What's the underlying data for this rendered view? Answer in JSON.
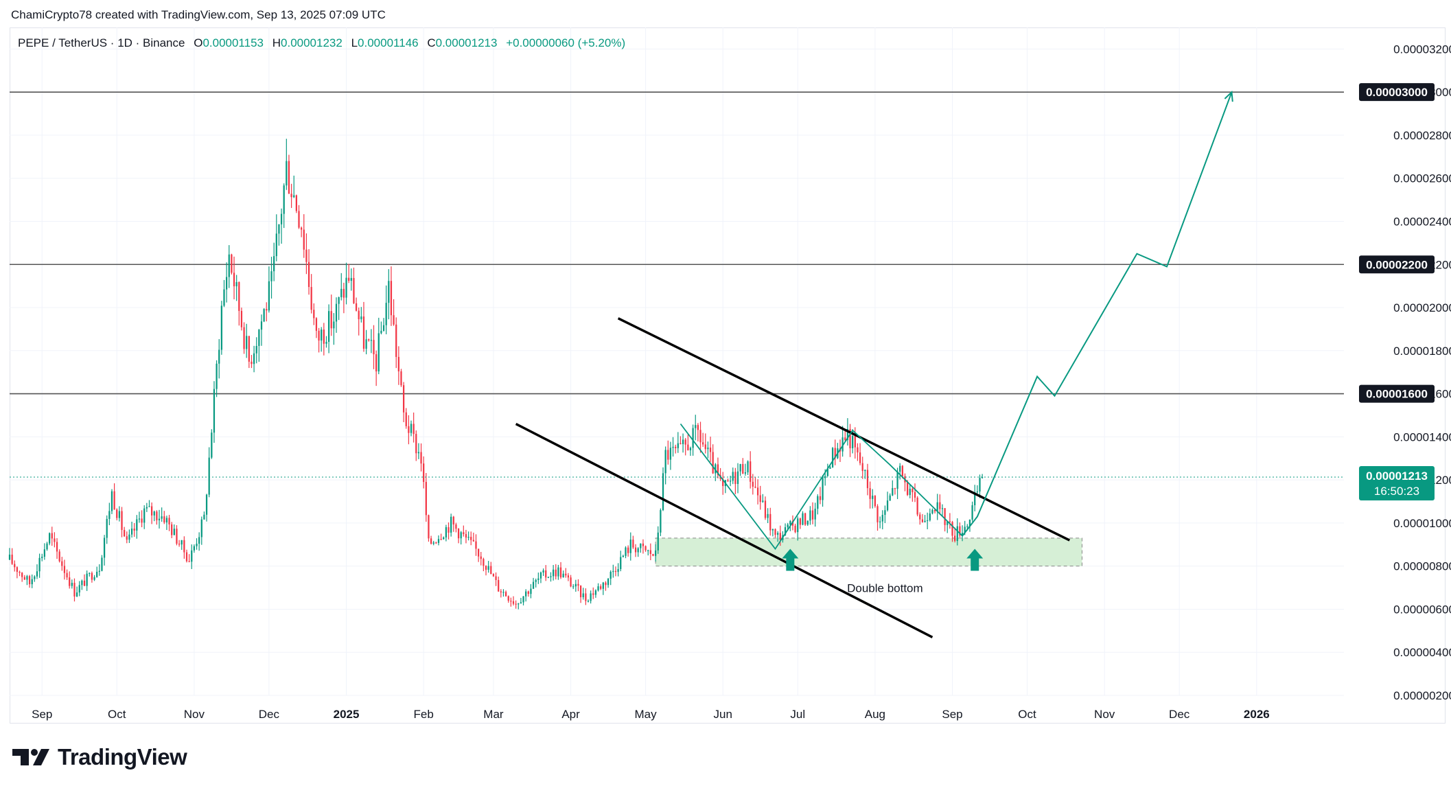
{
  "header": {
    "attribution": "ChamiCrypto78 created with TradingView.com, Sep 13, 2025 07:09 UTC"
  },
  "legend": {
    "symbol": "PEPE / TetherUS · 1D · Binance",
    "open_label": "O",
    "open": "0.00001153",
    "high_label": "H",
    "high": "0.00001232",
    "low_label": "L",
    "low": "0.00001146",
    "close_label": "C",
    "close": "0.00001213",
    "change": "+0.00000060 (+5.20%)"
  },
  "branding": {
    "logo_text": "TradingView",
    "logo_icon": "tradingview-logo-icon"
  },
  "colors": {
    "up": "#089981",
    "down": "#f23645",
    "zone": "#d6efd6",
    "text": "#131722",
    "grid": "#f0f3fa"
  },
  "chart_data": {
    "type": "candlestick",
    "symbol": "PEPE/USDT",
    "timeframe": "1D",
    "y_axis": {
      "min": 2e-06,
      "max": 3.3e-05,
      "ticks": [
        "0.00000200",
        "0.00000400",
        "0.00000600",
        "0.00000800",
        "0.00001000",
        "0.00001200",
        "0.00001400",
        "0.00001600",
        "0.00001800",
        "0.00002000",
        "0.00002200",
        "0.00002400",
        "0.00002600",
        "0.00002800",
        "0.00003000",
        "0.00003200"
      ]
    },
    "x_axis": {
      "start": "2024-08-19",
      "end": "2026-02-05",
      "labels": [
        {
          "text": "Sep",
          "date": "2024-09-01"
        },
        {
          "text": "Oct",
          "date": "2024-10-01"
        },
        {
          "text": "Nov",
          "date": "2024-11-01"
        },
        {
          "text": "Dec",
          "date": "2024-12-01"
        },
        {
          "text": "2025",
          "date": "2025-01-01",
          "bold": true
        },
        {
          "text": "Feb",
          "date": "2025-02-01"
        },
        {
          "text": "Mar",
          "date": "2025-03-01"
        },
        {
          "text": "Apr",
          "date": "2025-04-01"
        },
        {
          "text": "May",
          "date": "2025-05-01"
        },
        {
          "text": "Jun",
          "date": "2025-06-01"
        },
        {
          "text": "Jul",
          "date": "2025-07-01"
        },
        {
          "text": "Aug",
          "date": "2025-08-01"
        },
        {
          "text": "Sep",
          "date": "2025-09-01"
        },
        {
          "text": "Oct",
          "date": "2025-10-01"
        },
        {
          "text": "Nov",
          "date": "2025-11-01"
        },
        {
          "text": "Dec",
          "date": "2025-12-01"
        },
        {
          "text": "2026",
          "date": "2026-01-01",
          "bold": true
        }
      ]
    },
    "price_key_points": [
      [
        "2024-08-19",
        8.3e-06
      ],
      [
        "2024-08-27",
        7.2e-06
      ],
      [
        "2024-09-04",
        9.4e-06
      ],
      [
        "2024-09-14",
        6.8e-06
      ],
      [
        "2024-09-24",
        8e-06
      ],
      [
        "2024-09-29",
        1.14e-05
      ],
      [
        "2024-10-05",
        9e-06
      ],
      [
        "2024-10-12",
        1.06e-05
      ],
      [
        "2024-10-20",
        1.03e-05
      ],
      [
        "2024-10-30",
        8.3e-06
      ],
      [
        "2024-11-05",
        1.02e-05
      ],
      [
        "2024-11-12",
        2e-05
      ],
      [
        "2024-11-15",
        2.25e-05
      ],
      [
        "2024-11-23",
        1.75e-05
      ],
      [
        "2024-12-02",
        2.1e-05
      ],
      [
        "2024-12-08",
        2.65e-05
      ],
      [
        "2024-12-14",
        2.4e-05
      ],
      [
        "2024-12-20",
        1.85e-05
      ],
      [
        "2024-12-27",
        1.95e-05
      ],
      [
        "2025-01-02",
        2.15e-05
      ],
      [
        "2025-01-08",
        1.85e-05
      ],
      [
        "2025-01-13",
        1.75e-05
      ],
      [
        "2025-01-18",
        2.1e-05
      ],
      [
        "2025-01-24",
        1.5e-05
      ],
      [
        "2025-01-31",
        1.3e-05
      ],
      [
        "2025-02-03",
        9e-06
      ],
      [
        "2025-02-12",
        1e-05
      ],
      [
        "2025-02-24",
        8.5e-06
      ],
      [
        "2025-03-03",
        7e-06
      ],
      [
        "2025-03-10",
        6.3e-06
      ],
      [
        "2025-03-20",
        7.5e-06
      ],
      [
        "2025-03-27",
        7.8e-06
      ],
      [
        "2025-04-07",
        6.5e-06
      ],
      [
        "2025-04-15",
        7.3e-06
      ],
      [
        "2025-04-25",
        9e-06
      ],
      [
        "2025-05-05",
        8.5e-06
      ],
      [
        "2025-05-09",
        1.32e-05
      ],
      [
        "2025-05-15",
        1.33e-05
      ],
      [
        "2025-05-22",
        1.42e-05
      ],
      [
        "2025-06-01",
        1.15e-05
      ],
      [
        "2025-06-10",
        1.28e-05
      ],
      [
        "2025-06-22",
        9.3e-06
      ],
      [
        "2025-07-01",
        1e-05
      ],
      [
        "2025-07-08",
        1.05e-05
      ],
      [
        "2025-07-14",
        1.3e-05
      ],
      [
        "2025-07-21",
        1.42e-05
      ],
      [
        "2025-07-27",
        1.25e-05
      ],
      [
        "2025-08-03",
        1e-05
      ],
      [
        "2025-08-11",
        1.24e-05
      ],
      [
        "2025-08-20",
        1e-05
      ],
      [
        "2025-08-24",
        1.1e-05
      ],
      [
        "2025-09-02",
        9.5e-06
      ],
      [
        "2025-09-07",
        1e-05
      ],
      [
        "2025-09-13",
        1.21e-05
      ]
    ],
    "horizontal_levels": [
      {
        "price": 3e-05,
        "label": "0.00003000"
      },
      {
        "price": 2.2e-05,
        "label": "0.00002200"
      },
      {
        "price": 1.6e-05,
        "label": "0.00001600"
      }
    ],
    "last_price": {
      "price": 1.213e-05,
      "label": "0.00001213",
      "countdown": "16:50:23"
    },
    "support_zone": {
      "from": "2025-05-05",
      "to": "2025-10-23",
      "low": 8e-06,
      "high": 9.3e-06
    },
    "channel_lines": [
      {
        "from": [
          "2025-04-20",
          1.95e-05
        ],
        "to": [
          "2025-10-18",
          9.2e-06
        ]
      },
      {
        "from": [
          "2025-03-10",
          1.46e-05
        ],
        "to": [
          "2025-08-24",
          4.7e-06
        ]
      }
    ],
    "pattern_path": [
      [
        "2025-05-15",
        1.46e-05
      ],
      [
        "2025-06-22",
        8.8e-06
      ],
      [
        "2025-07-23",
        1.43e-05
      ],
      [
        "2025-08-07",
        1.27e-05
      ],
      [
        "2025-09-05",
        9.4e-06
      ]
    ],
    "projection_path": [
      [
        "2025-09-05",
        9.4e-06
      ],
      [
        "2025-09-11",
        1.03e-05
      ],
      [
        "2025-10-05",
        1.68e-05
      ],
      [
        "2025-10-12",
        1.59e-05
      ],
      [
        "2025-11-14",
        2.25e-05
      ],
      [
        "2025-11-26",
        2.19e-05
      ],
      [
        "2025-12-22",
        3e-05
      ]
    ],
    "markers": [
      {
        "date": "2025-06-28",
        "price": 8.1e-06,
        "type": "up-arrow"
      },
      {
        "date": "2025-09-10",
        "price": 8.1e-06,
        "type": "up-arrow"
      }
    ],
    "annotations": [
      {
        "text": "Double bottom",
        "date": "2025-08-05",
        "price": 6.8e-06
      }
    ]
  }
}
